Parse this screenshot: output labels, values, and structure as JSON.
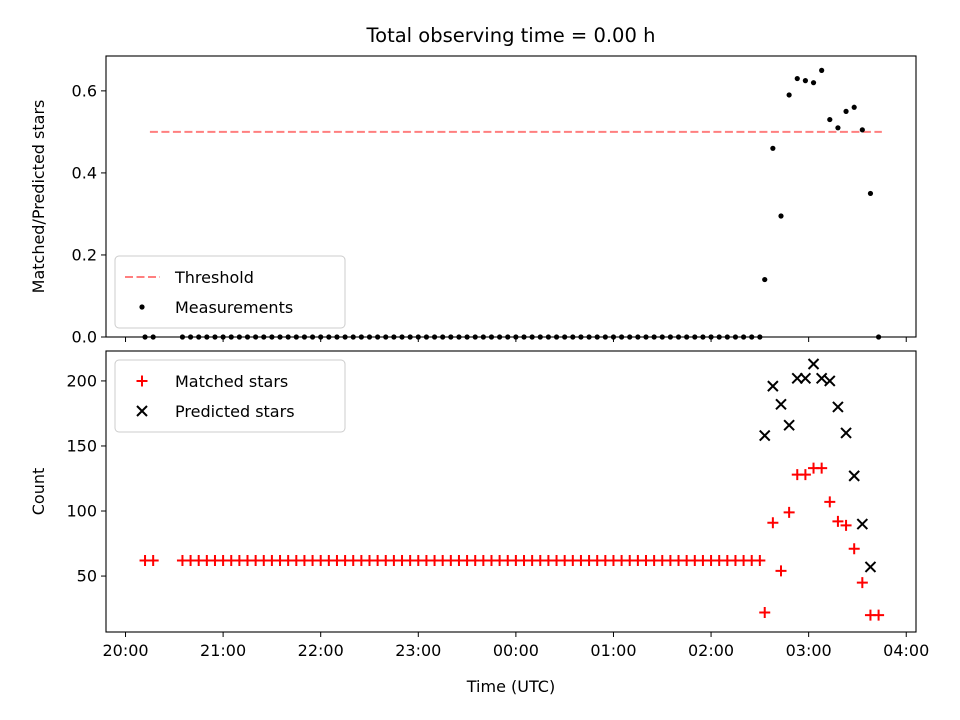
{
  "title": "Total observing time = 0.00 h",
  "chart_data": [
    {
      "type": "scatter",
      "ylabel": "Matched/Predicted stars",
      "xlabel": "",
      "ylim": [
        0,
        0.685
      ],
      "yticks": [
        "0.0",
        "0.2",
        "0.4",
        "0.6"
      ],
      "legend_position": "lower-left",
      "threshold": {
        "name": "Threshold",
        "value": 0.5,
        "x_start": "20:15",
        "x_end": "03:45",
        "color": "#ff7f7f"
      },
      "series": [
        {
          "name": "Measurements",
          "marker": "dot",
          "color": "#000000",
          "points": [
            [
              "20:12",
              0
            ],
            [
              "20:17",
              0
            ],
            [
              "20:35",
              0
            ],
            [
              "20:40",
              0
            ],
            [
              "20:45",
              0
            ],
            [
              "20:50",
              0
            ],
            [
              "20:55",
              0
            ],
            [
              "21:00",
              0
            ],
            [
              "21:05",
              0
            ],
            [
              "21:10",
              0
            ],
            [
              "21:15",
              0
            ],
            [
              "21:20",
              0
            ],
            [
              "21:25",
              0
            ],
            [
              "21:30",
              0
            ],
            [
              "21:35",
              0
            ],
            [
              "21:40",
              0
            ],
            [
              "21:45",
              0
            ],
            [
              "21:50",
              0
            ],
            [
              "21:55",
              0
            ],
            [
              "22:00",
              0
            ],
            [
              "22:05",
              0
            ],
            [
              "22:10",
              0
            ],
            [
              "22:15",
              0
            ],
            [
              "22:20",
              0
            ],
            [
              "22:25",
              0
            ],
            [
              "22:30",
              0
            ],
            [
              "22:35",
              0
            ],
            [
              "22:40",
              0
            ],
            [
              "22:45",
              0
            ],
            [
              "22:50",
              0
            ],
            [
              "22:55",
              0
            ],
            [
              "23:00",
              0
            ],
            [
              "23:05",
              0
            ],
            [
              "23:10",
              0
            ],
            [
              "23:15",
              0
            ],
            [
              "23:20",
              0
            ],
            [
              "23:25",
              0
            ],
            [
              "23:30",
              0
            ],
            [
              "23:35",
              0
            ],
            [
              "23:40",
              0
            ],
            [
              "23:45",
              0
            ],
            [
              "23:50",
              0
            ],
            [
              "23:55",
              0
            ],
            [
              "00:00",
              0
            ],
            [
              "00:05",
              0
            ],
            [
              "00:10",
              0
            ],
            [
              "00:15",
              0
            ],
            [
              "00:20",
              0
            ],
            [
              "00:25",
              0
            ],
            [
              "00:30",
              0
            ],
            [
              "00:35",
              0
            ],
            [
              "00:40",
              0
            ],
            [
              "00:45",
              0
            ],
            [
              "00:50",
              0
            ],
            [
              "00:55",
              0
            ],
            [
              "01:00",
              0
            ],
            [
              "01:05",
              0
            ],
            [
              "01:10",
              0
            ],
            [
              "01:15",
              0
            ],
            [
              "01:20",
              0
            ],
            [
              "01:25",
              0
            ],
            [
              "01:30",
              0
            ],
            [
              "01:35",
              0
            ],
            [
              "01:40",
              0
            ],
            [
              "01:45",
              0
            ],
            [
              "01:50",
              0
            ],
            [
              "01:55",
              0
            ],
            [
              "02:00",
              0
            ],
            [
              "02:05",
              0
            ],
            [
              "02:10",
              0
            ],
            [
              "02:15",
              0
            ],
            [
              "02:20",
              0
            ],
            [
              "02:25",
              0
            ],
            [
              "02:30",
              0
            ],
            [
              "02:33",
              0.14
            ],
            [
              "02:38",
              0.46
            ],
            [
              "02:43",
              0.295
            ],
            [
              "02:48",
              0.59
            ],
            [
              "02:53",
              0.63
            ],
            [
              "02:58",
              0.625
            ],
            [
              "03:03",
              0.62
            ],
            [
              "03:08",
              0.65
            ],
            [
              "03:13",
              0.53
            ],
            [
              "03:18",
              0.51
            ],
            [
              "03:23",
              0.55
            ],
            [
              "03:28",
              0.56
            ],
            [
              "03:33",
              0.505
            ],
            [
              "03:38",
              0.35
            ],
            [
              "03:43",
              0
            ]
          ]
        }
      ]
    },
    {
      "type": "scatter",
      "ylabel": "Count",
      "xlabel": "Time (UTC)",
      "ylim": [
        7,
        223
      ],
      "yticks": [
        "50",
        "100",
        "150",
        "200"
      ],
      "xticks": [
        "20:00",
        "21:00",
        "22:00",
        "23:00",
        "00:00",
        "01:00",
        "02:00",
        "03:00",
        "04:00"
      ],
      "legend_position": "upper-left",
      "series": [
        {
          "name": "Matched stars",
          "marker": "plus",
          "color": "#ff0000",
          "points": [
            [
              "20:12",
              62
            ],
            [
              "20:17",
              62
            ],
            [
              "20:35",
              62
            ],
            [
              "20:40",
              62
            ],
            [
              "20:45",
              62
            ],
            [
              "20:50",
              62
            ],
            [
              "20:55",
              62
            ],
            [
              "21:00",
              62
            ],
            [
              "21:05",
              62
            ],
            [
              "21:10",
              62
            ],
            [
              "21:15",
              62
            ],
            [
              "21:20",
              62
            ],
            [
              "21:25",
              62
            ],
            [
              "21:30",
              62
            ],
            [
              "21:35",
              62
            ],
            [
              "21:40",
              62
            ],
            [
              "21:45",
              62
            ],
            [
              "21:50",
              62
            ],
            [
              "21:55",
              62
            ],
            [
              "22:00",
              62
            ],
            [
              "22:05",
              62
            ],
            [
              "22:10",
              62
            ],
            [
              "22:15",
              62
            ],
            [
              "22:20",
              62
            ],
            [
              "22:25",
              62
            ],
            [
              "22:30",
              62
            ],
            [
              "22:35",
              62
            ],
            [
              "22:40",
              62
            ],
            [
              "22:45",
              62
            ],
            [
              "22:50",
              62
            ],
            [
              "22:55",
              62
            ],
            [
              "23:00",
              62
            ],
            [
              "23:05",
              62
            ],
            [
              "23:10",
              62
            ],
            [
              "23:15",
              62
            ],
            [
              "23:20",
              62
            ],
            [
              "23:25",
              62
            ],
            [
              "23:30",
              62
            ],
            [
              "23:35",
              62
            ],
            [
              "23:40",
              62
            ],
            [
              "23:45",
              62
            ],
            [
              "23:50",
              62
            ],
            [
              "23:55",
              62
            ],
            [
              "00:00",
              62
            ],
            [
              "00:05",
              62
            ],
            [
              "00:10",
              62
            ],
            [
              "00:15",
              62
            ],
            [
              "00:20",
              62
            ],
            [
              "00:25",
              62
            ],
            [
              "00:30",
              62
            ],
            [
              "00:35",
              62
            ],
            [
              "00:40",
              62
            ],
            [
              "00:45",
              62
            ],
            [
              "00:50",
              62
            ],
            [
              "00:55",
              62
            ],
            [
              "01:00",
              62
            ],
            [
              "01:05",
              62
            ],
            [
              "01:10",
              62
            ],
            [
              "01:15",
              62
            ],
            [
              "01:20",
              62
            ],
            [
              "01:25",
              62
            ],
            [
              "01:30",
              62
            ],
            [
              "01:35",
              62
            ],
            [
              "01:40",
              62
            ],
            [
              "01:45",
              62
            ],
            [
              "01:50",
              62
            ],
            [
              "01:55",
              62
            ],
            [
              "02:00",
              62
            ],
            [
              "02:05",
              62
            ],
            [
              "02:10",
              62
            ],
            [
              "02:15",
              62
            ],
            [
              "02:20",
              62
            ],
            [
              "02:25",
              62
            ],
            [
              "02:30",
              62
            ],
            [
              "02:33",
              22
            ],
            [
              "02:38",
              91
            ],
            [
              "02:43",
              54
            ],
            [
              "02:48",
              99
            ],
            [
              "02:53",
              128
            ],
            [
              "02:58",
              128
            ],
            [
              "03:03",
              133
            ],
            [
              "03:08",
              133
            ],
            [
              "03:13",
              107
            ],
            [
              "03:18",
              92
            ],
            [
              "03:23",
              89
            ],
            [
              "03:28",
              71
            ],
            [
              "03:33",
              45
            ],
            [
              "03:38",
              20
            ],
            [
              "03:43",
              20
            ]
          ]
        },
        {
          "name": "Predicted stars",
          "marker": "x",
          "color": "#000000",
          "points": [
            [
              "02:33",
              158
            ],
            [
              "02:38",
              196
            ],
            [
              "02:43",
              182
            ],
            [
              "02:48",
              166
            ],
            [
              "02:53",
              202
            ],
            [
              "02:58",
              202
            ],
            [
              "03:03",
              213
            ],
            [
              "03:08",
              202
            ],
            [
              "03:13",
              200
            ],
            [
              "03:18",
              180
            ],
            [
              "03:23",
              160
            ],
            [
              "03:28",
              127
            ],
            [
              "03:33",
              90
            ],
            [
              "03:38",
              57
            ]
          ]
        }
      ]
    }
  ]
}
